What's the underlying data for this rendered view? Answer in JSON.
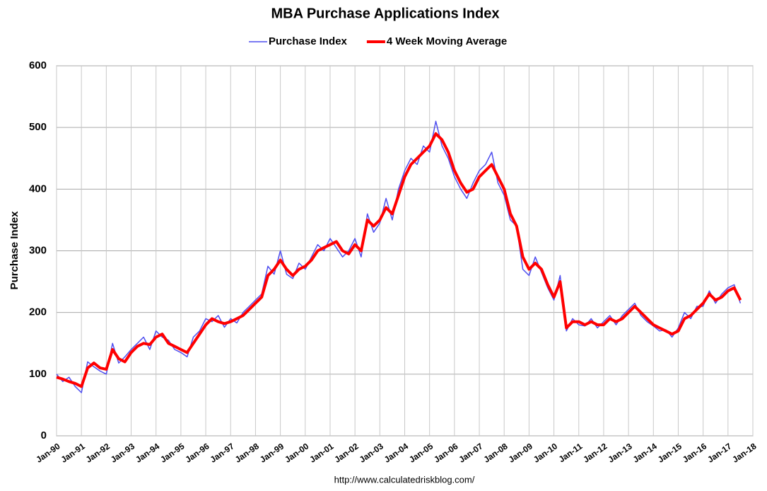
{
  "chart_data": {
    "type": "line",
    "title": "MBA Purchase Applications Index",
    "y_label": "Purchase Index",
    "source": "http://www.calculatedriskblog.com/",
    "grid": true,
    "legend": "top",
    "xlim": [
      "1990-01",
      "2018-01"
    ],
    "ylim": [
      0,
      600
    ],
    "yticks": [
      0,
      100,
      200,
      300,
      400,
      500,
      600
    ],
    "xticks": [
      {
        "value": "1990-01",
        "label": "Jan-90"
      },
      {
        "value": "1991-01",
        "label": "Jan-91"
      },
      {
        "value": "1992-01",
        "label": "Jan-92"
      },
      {
        "value": "1993-01",
        "label": "Jan-93"
      },
      {
        "value": "1994-01",
        "label": "Jan-94"
      },
      {
        "value": "1995-01",
        "label": "Jan-95"
      },
      {
        "value": "1996-01",
        "label": "Jan-96"
      },
      {
        "value": "1997-01",
        "label": "Jan-97"
      },
      {
        "value": "1998-01",
        "label": "Jan-98"
      },
      {
        "value": "1999-01",
        "label": "Jan-99"
      },
      {
        "value": "2000-01",
        "label": "Jan-00"
      },
      {
        "value": "2001-01",
        "label": "Jan-01"
      },
      {
        "value": "2002-01",
        "label": "Jan-02"
      },
      {
        "value": "2003-01",
        "label": "Jan-03"
      },
      {
        "value": "2004-01",
        "label": "Jan-04"
      },
      {
        "value": "2005-01",
        "label": "Jan-05"
      },
      {
        "value": "2006-01",
        "label": "Jan-06"
      },
      {
        "value": "2007-01",
        "label": "Jan-07"
      },
      {
        "value": "2008-01",
        "label": "Jan-08"
      },
      {
        "value": "2009-01",
        "label": "Jan-09"
      },
      {
        "value": "2010-01",
        "label": "Jan-10"
      },
      {
        "value": "2011-01",
        "label": "Jan-11"
      },
      {
        "value": "2012-01",
        "label": "Jan-12"
      },
      {
        "value": "2013-01",
        "label": "Jan-13"
      },
      {
        "value": "2014-01",
        "label": "Jan-14"
      },
      {
        "value": "2015-01",
        "label": "Jan-15"
      },
      {
        "value": "2016-01",
        "label": "Jan-16"
      },
      {
        "value": "2017-01",
        "label": "Jan-17"
      },
      {
        "value": "2018-01",
        "label": "Jan-18"
      }
    ],
    "x": [
      "1990-01",
      "1990-04",
      "1990-07",
      "1990-10",
      "1991-01",
      "1991-04",
      "1991-07",
      "1991-10",
      "1992-01",
      "1992-04",
      "1992-07",
      "1992-10",
      "1993-01",
      "1993-04",
      "1993-07",
      "1993-10",
      "1994-01",
      "1994-04",
      "1994-07",
      "1994-10",
      "1995-01",
      "1995-04",
      "1995-07",
      "1995-10",
      "1996-01",
      "1996-04",
      "1996-07",
      "1996-10",
      "1997-01",
      "1997-04",
      "1997-07",
      "1997-10",
      "1998-01",
      "1998-04",
      "1998-07",
      "1998-10",
      "1999-01",
      "1999-04",
      "1999-07",
      "1999-10",
      "2000-01",
      "2000-04",
      "2000-07",
      "2000-10",
      "2001-01",
      "2001-04",
      "2001-07",
      "2001-10",
      "2002-01",
      "2002-04",
      "2002-07",
      "2002-10",
      "2003-01",
      "2003-04",
      "2003-07",
      "2003-10",
      "2004-01",
      "2004-04",
      "2004-07",
      "2004-10",
      "2005-01",
      "2005-04",
      "2005-07",
      "2005-10",
      "2006-01",
      "2006-04",
      "2006-07",
      "2006-10",
      "2007-01",
      "2007-04",
      "2007-07",
      "2007-10",
      "2008-01",
      "2008-04",
      "2008-07",
      "2008-10",
      "2009-01",
      "2009-04",
      "2009-07",
      "2009-10",
      "2010-01",
      "2010-04",
      "2010-07",
      "2010-10",
      "2011-01",
      "2011-04",
      "2011-07",
      "2011-10",
      "2012-01",
      "2012-04",
      "2012-07",
      "2012-10",
      "2013-01",
      "2013-04",
      "2013-07",
      "2013-10",
      "2014-01",
      "2014-04",
      "2014-07",
      "2014-10",
      "2015-01",
      "2015-04",
      "2015-07",
      "2015-10",
      "2016-01",
      "2016-04",
      "2016-07",
      "2016-10",
      "2017-01",
      "2017-04",
      "2017-07"
    ],
    "series": [
      {
        "name": "Purchase Index",
        "color": "#4f4fef",
        "width": 1.5,
        "values": [
          100,
          88,
          95,
          80,
          70,
          120,
          112,
          105,
          100,
          150,
          118,
          128,
          140,
          150,
          160,
          140,
          170,
          160,
          155,
          140,
          135,
          128,
          160,
          170,
          190,
          185,
          195,
          176,
          190,
          183,
          200,
          210,
          220,
          230,
          275,
          262,
          300,
          262,
          255,
          280,
          270,
          290,
          310,
          300,
          320,
          305,
          290,
          300,
          320,
          290,
          360,
          330,
          345,
          385,
          350,
          400,
          430,
          450,
          440,
          470,
          460,
          510,
          470,
          450,
          420,
          400,
          385,
          410,
          430,
          440,
          460,
          410,
          390,
          350,
          340,
          270,
          260,
          290,
          265,
          240,
          220,
          260,
          170,
          190,
          180,
          178,
          190,
          175,
          185,
          195,
          180,
          195,
          205,
          215,
          195,
          185,
          178,
          170,
          172,
          160,
          175,
          200,
          190,
          210,
          210,
          235,
          215,
          230,
          240,
          245,
          215
        ]
      },
      {
        "name": "4 Week Moving Average",
        "color": "#ff0000",
        "width": 4,
        "values": [
          95,
          92,
          88,
          85,
          80,
          110,
          118,
          110,
          108,
          140,
          125,
          120,
          135,
          145,
          150,
          148,
          160,
          165,
          150,
          145,
          140,
          135,
          150,
          165,
          180,
          190,
          185,
          182,
          185,
          190,
          195,
          205,
          215,
          225,
          260,
          270,
          285,
          270,
          260,
          270,
          275,
          285,
          300,
          305,
          310,
          315,
          300,
          295,
          310,
          300,
          350,
          340,
          350,
          370,
          360,
          390,
          420,
          440,
          450,
          460,
          470,
          490,
          480,
          460,
          430,
          410,
          395,
          400,
          420,
          430,
          440,
          420,
          400,
          360,
          340,
          290,
          270,
          280,
          270,
          245,
          225,
          250,
          175,
          185,
          185,
          180,
          185,
          180,
          180,
          190,
          185,
          190,
          200,
          210,
          200,
          190,
          180,
          175,
          170,
          165,
          170,
          190,
          195,
          205,
          215,
          230,
          220,
          225,
          235,
          240,
          220
        ]
      }
    ]
  }
}
